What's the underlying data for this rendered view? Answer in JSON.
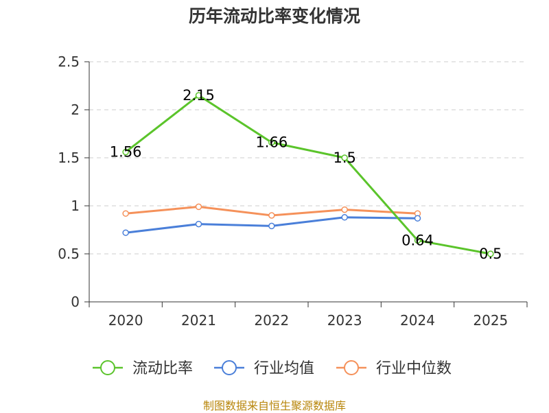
{
  "chart_data": {
    "type": "line",
    "title": "历年流动比率变化情况",
    "categories": [
      "2020",
      "2021",
      "2022",
      "2023",
      "2024",
      "2025"
    ],
    "ylim": [
      0,
      2.5
    ],
    "yticks": [
      0,
      0.5,
      1,
      1.5,
      2,
      2.5
    ],
    "ytick_labels": [
      "0",
      "0.5",
      "1",
      "1.5",
      "2",
      "2.5"
    ],
    "grid": "horizontal dashed",
    "legend_position": "bottom",
    "series": [
      {
        "name": "流动比率",
        "color": "#5bc42b",
        "values": [
          1.56,
          2.15,
          1.66,
          1.5,
          0.64,
          0.5
        ],
        "labels": [
          "1.56",
          "2.15",
          "1.66",
          "1.5",
          "0.64",
          "0.5"
        ]
      },
      {
        "name": "行业均值",
        "color": "#4a7fd9",
        "values": [
          0.72,
          0.81,
          0.79,
          0.88,
          0.87,
          null
        ]
      },
      {
        "name": "行业中位数",
        "color": "#f5915a",
        "values": [
          0.92,
          0.99,
          0.9,
          0.96,
          0.92,
          null
        ]
      }
    ]
  },
  "source": "制图数据来自恒生聚源数据库"
}
